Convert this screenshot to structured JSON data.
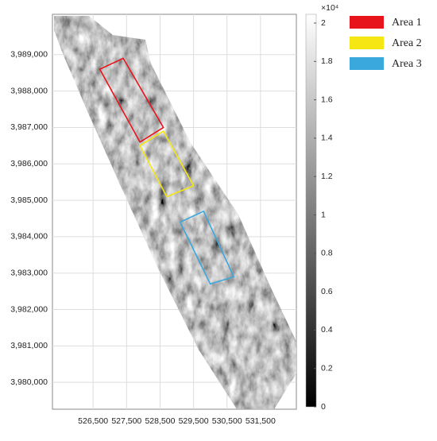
{
  "chart_data": {
    "type": "raster",
    "xlim": [
      525286,
      532571
    ],
    "ylim": [
      3979261,
      3990109
    ],
    "xticks": [
      {
        "value": 526500,
        "label": "526,500"
      },
      {
        "value": 527500,
        "label": "527,500"
      },
      {
        "value": 528500,
        "label": "528,500"
      },
      {
        "value": 529500,
        "label": "529,500"
      },
      {
        "value": 530500,
        "label": "530,500"
      },
      {
        "value": 531500,
        "label": "531,500"
      }
    ],
    "yticks": [
      {
        "value": 3989000,
        "label": "3,989,000"
      },
      {
        "value": 3988000,
        "label": "3,988,000"
      },
      {
        "value": 3987000,
        "label": "3,987,000"
      },
      {
        "value": 3986000,
        "label": "3,986,000"
      },
      {
        "value": 3985000,
        "label": "3,985,000"
      },
      {
        "value": 3984000,
        "label": "3,984,000"
      },
      {
        "value": 3983000,
        "label": "3,983,000"
      },
      {
        "value": 3982000,
        "label": "3,982,000"
      },
      {
        "value": 3981000,
        "label": "3,981,000"
      },
      {
        "value": 3980000,
        "label": "3,980,000"
      }
    ],
    "grid": true,
    "colorbar": {
      "clim": [
        0,
        2
      ],
      "ticks": [
        0,
        0.2,
        0.4,
        0.6,
        0.8,
        1,
        1.2,
        1.4,
        1.6,
        1.8,
        2
      ],
      "multiplier": "×10⁴",
      "colors": [
        "#000000",
        "#ffffff"
      ]
    },
    "legend": "right",
    "series": [
      {
        "name": "Area 1",
        "color": "#e8141c",
        "x": [
          526700,
          527400,
          528600,
          527900
        ],
        "y": [
          3988600,
          3988900,
          3987000,
          3986600
        ]
      },
      {
        "name": "Area 2",
        "color": "#f5e614",
        "x": [
          527900,
          528600,
          529500,
          528700
        ],
        "y": [
          3986500,
          3986900,
          3985400,
          3985100
        ]
      },
      {
        "name": "Area 3",
        "color": "#3aa8dc",
        "x": [
          529100,
          529800,
          530700,
          530000
        ],
        "y": [
          3984400,
          3984700,
          3982900,
          3982700
        ]
      }
    ]
  }
}
